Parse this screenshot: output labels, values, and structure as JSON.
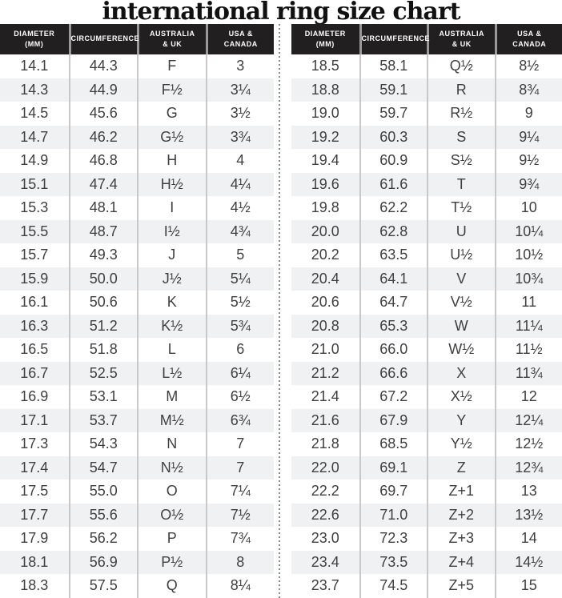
{
  "title": "international ring size chart",
  "chart_data": {
    "type": "table",
    "title": "international ring size chart",
    "columns": [
      {
        "line1": "DIAMETER",
        "line2": "(mm)"
      },
      {
        "line1": "CIRCUMFERENCE",
        "line2": ""
      },
      {
        "line1": "AUSTRALIA",
        "line2": "& UK"
      },
      {
        "line1": "USA &",
        "line2": "CANADA"
      }
    ],
    "column_keys": [
      "diameter_mm",
      "circumference",
      "australia_uk",
      "usa_canada"
    ],
    "left_table_rows": [
      [
        "14.1",
        "44.3",
        "F",
        "3"
      ],
      [
        "14.3",
        "44.9",
        "F½",
        "3¼"
      ],
      [
        "14.5",
        "45.6",
        "G",
        "3½"
      ],
      [
        "14.7",
        "46.2",
        "G½",
        "3¾"
      ],
      [
        "14.9",
        "46.8",
        "H",
        "4"
      ],
      [
        "15.1",
        "47.4",
        "H½",
        "4¼"
      ],
      [
        "15.3",
        "48.1",
        "I",
        "4½"
      ],
      [
        "15.5",
        "48.7",
        "I½",
        "4¾"
      ],
      [
        "15.7",
        "49.3",
        "J",
        "5"
      ],
      [
        "15.9",
        "50.0",
        "J½",
        "5¼"
      ],
      [
        "16.1",
        "50.6",
        "K",
        "5½"
      ],
      [
        "16.3",
        "51.2",
        "K½",
        "5¾"
      ],
      [
        "16.5",
        "51.8",
        "L",
        "6"
      ],
      [
        "16.7",
        "52.5",
        "L½",
        "6¼"
      ],
      [
        "16.9",
        "53.1",
        "M",
        "6½"
      ],
      [
        "17.1",
        "53.7",
        "M½",
        "6¾"
      ],
      [
        "17.3",
        "54.3",
        "N",
        "7"
      ],
      [
        "17.4",
        "54.7",
        "N½",
        "7"
      ],
      [
        "17.5",
        "55.0",
        "O",
        "7¼"
      ],
      [
        "17.7",
        "55.6",
        "O½",
        "7½"
      ],
      [
        "17.9",
        "56.2",
        "P",
        "7¾"
      ],
      [
        "18.1",
        "56.9",
        "P½",
        "8"
      ],
      [
        "18.3",
        "57.5",
        "Q",
        "8¼"
      ]
    ],
    "right_table_rows": [
      [
        "18.5",
        "58.1",
        "Q½",
        "8½"
      ],
      [
        "18.8",
        "59.1",
        "R",
        "8¾"
      ],
      [
        "19.0",
        "59.7",
        "R½",
        "9"
      ],
      [
        "19.2",
        "60.3",
        "S",
        "9¼"
      ],
      [
        "19.4",
        "60.9",
        "S½",
        "9½"
      ],
      [
        "19.6",
        "61.6",
        "T",
        "9¾"
      ],
      [
        "19.8",
        "62.2",
        "T½",
        "10"
      ],
      [
        "20.0",
        "62.8",
        "U",
        "10¼"
      ],
      [
        "20.2",
        "63.5",
        "U½",
        "10½"
      ],
      [
        "20.4",
        "64.1",
        "V",
        "10¾"
      ],
      [
        "20.6",
        "64.7",
        "V½",
        "11"
      ],
      [
        "20.8",
        "65.3",
        "W",
        "11¼"
      ],
      [
        "21.0",
        "66.0",
        "W½",
        "11½"
      ],
      [
        "21.2",
        "66.6",
        "X",
        "11¾"
      ],
      [
        "21.4",
        "67.2",
        "X½",
        "12"
      ],
      [
        "21.6",
        "67.9",
        "Y",
        "12¼"
      ],
      [
        "21.8",
        "68.5",
        "Y½",
        "12½"
      ],
      [
        "22.0",
        "69.1",
        "Z",
        "12¾"
      ],
      [
        "22.2",
        "69.7",
        "Z+1",
        "13"
      ],
      [
        "22.6",
        "71.0",
        "Z+2",
        "13½"
      ],
      [
        "23.0",
        "72.3",
        "Z+3",
        "14"
      ],
      [
        "23.4",
        "73.5",
        "Z+4",
        "14½"
      ],
      [
        "23.7",
        "74.5",
        "Z+5",
        "15"
      ]
    ]
  },
  "colors": {
    "header_bg": "#221f20",
    "header_text": "#ffffff",
    "row_alt": "#f0f1f2",
    "column_separator": "#c8c8c8",
    "header_separator": "#9a9a9a",
    "divider_dot": "#8a8a8a",
    "body_text": "#3f3f3f",
    "title_text": "#111111"
  }
}
